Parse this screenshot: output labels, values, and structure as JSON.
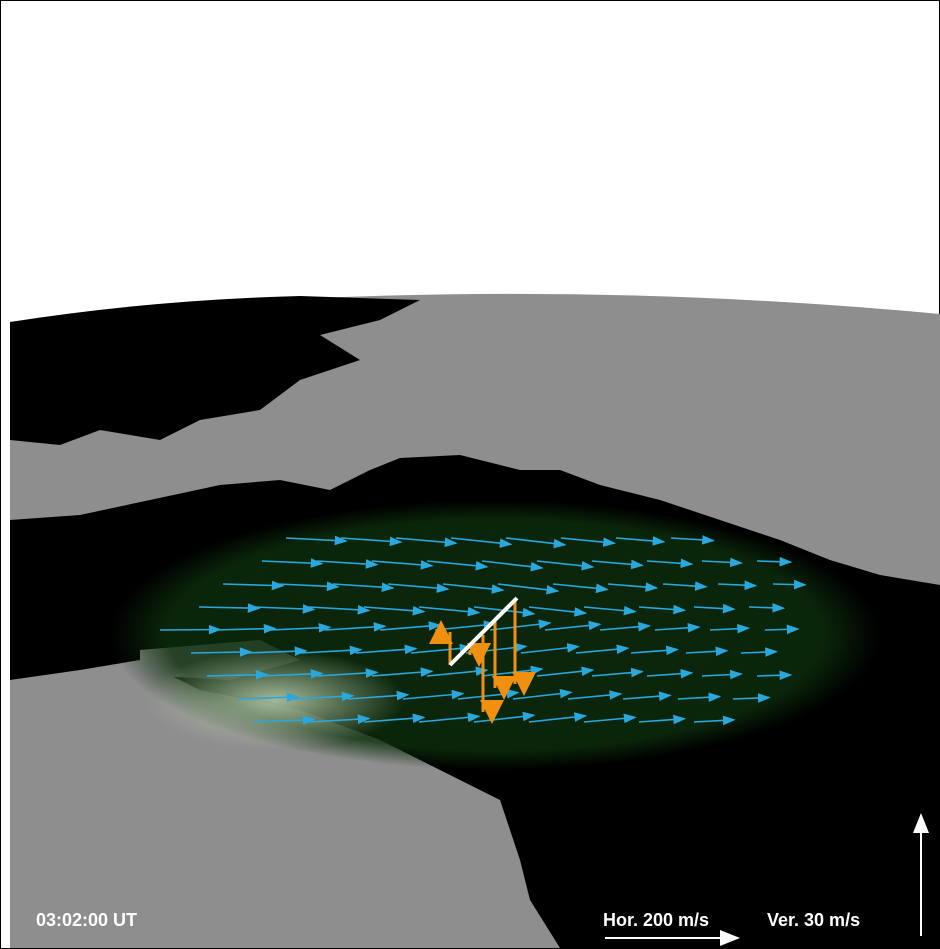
{
  "timestamp": "03:02:00 UT",
  "scale": {
    "horizontal": "Hor. 200 m/s",
    "vertical": "Ver. 30 m/s"
  }
}
